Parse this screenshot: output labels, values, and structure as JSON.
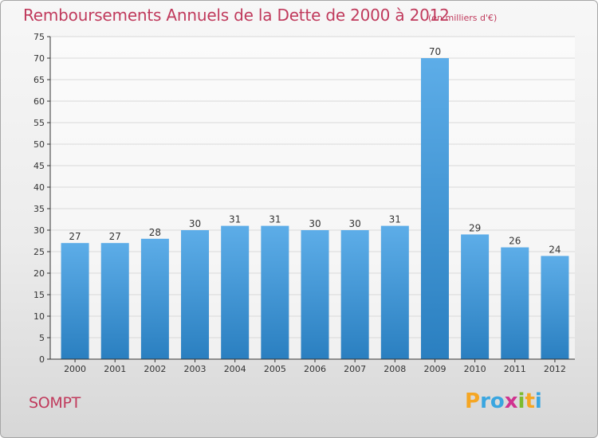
{
  "title": "Remboursements Annuels de la Dette de 2000 à 2012",
  "subtitle": "(en milliers d'€)",
  "commune": "SOMPT",
  "logo": {
    "text": "Proxiti",
    "letters": [
      "P",
      "r",
      "o",
      "x",
      "i",
      "t",
      "i"
    ],
    "colors": [
      "#f5a623",
      "#3aa6e0",
      "#3aa6e0",
      "#d0338f",
      "#7dbb2f",
      "#f5a623",
      "#3aa6e0"
    ]
  },
  "colors": {
    "title": "#c03a5c",
    "bar_top": "#5dade8",
    "bar_bottom": "#2a7fc0",
    "grid": "#d9d9d9",
    "axis": "#333333"
  },
  "chart_data": {
    "type": "bar",
    "categories": [
      "2000",
      "2001",
      "2002",
      "2003",
      "2004",
      "2005",
      "2006",
      "2007",
      "2008",
      "2009",
      "2010",
      "2011",
      "2012"
    ],
    "values": [
      27,
      27,
      28,
      30,
      31,
      31,
      30,
      30,
      31,
      70,
      29,
      26,
      24
    ],
    "data_labels": [
      "27",
      "27",
      "28",
      "30",
      "31",
      "31",
      "30",
      "30",
      "31",
      "70",
      "29",
      "26",
      "24"
    ],
    "yticks": [
      "0",
      "5",
      "10",
      "15",
      "20",
      "25",
      "30",
      "35",
      "40",
      "45",
      "50",
      "55",
      "60",
      "65",
      "70",
      "75"
    ],
    "ylim": [
      0,
      75
    ],
    "grid": true,
    "legend": "none"
  }
}
